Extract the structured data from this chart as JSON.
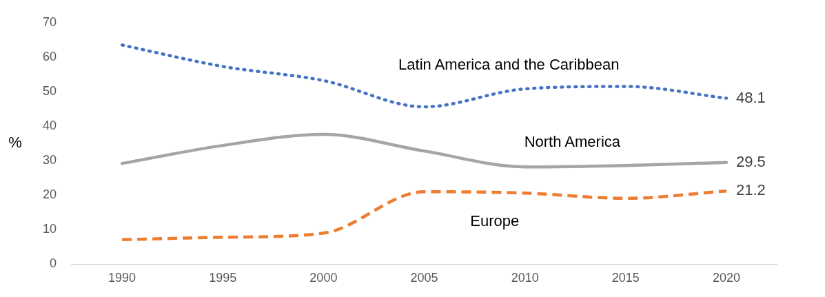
{
  "chart_data": {
    "type": "line",
    "ylabel": "%",
    "x": [
      1990,
      1995,
      2000,
      2005,
      2010,
      2015,
      2020
    ],
    "xlim": [
      1987.5,
      2022.5
    ],
    "xticks": [
      1990,
      1995,
      2000,
      2005,
      2010,
      2015,
      2020
    ],
    "ylim": [
      0,
      70
    ],
    "yticks": [
      0,
      10,
      20,
      30,
      40,
      50,
      60,
      70
    ],
    "grid": false,
    "legend": false,
    "series": [
      {
        "name": "Latin America and the Caribbean",
        "color": "#4472c4",
        "line_style": "dotted",
        "values": [
          63.5,
          57.3,
          53.2,
          45.6,
          50.8,
          51.5,
          48.1
        ],
        "value_labels": [
          null,
          null,
          null,
          null,
          null,
          null,
          "48.1"
        ]
      },
      {
        "name": "North America",
        "color": "#a5a5a5",
        "line_style": "solid",
        "values": [
          29.2,
          34.4,
          37.6,
          32.8,
          28.2,
          28.6,
          29.5
        ],
        "value_labels": [
          null,
          null,
          null,
          null,
          null,
          null,
          "29.5"
        ]
      },
      {
        "name": "Europe",
        "color": "#ed7d31",
        "line_style": "dashed",
        "values": [
          7.1,
          7.8,
          9.0,
          21.0,
          20.6,
          19.1,
          21.2
        ],
        "value_labels": [
          null,
          null,
          null,
          null,
          null,
          null,
          "21.2"
        ]
      }
    ]
  }
}
